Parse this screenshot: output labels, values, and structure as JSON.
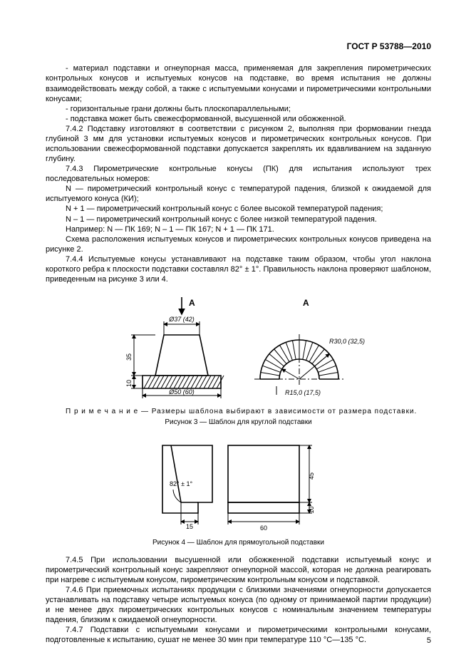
{
  "header": "ГОСТ Р 53788—2010",
  "paragraphs": {
    "p1": "-  материал подставки и огнеупорная масса, применяемая для закрепления пирометрических контрольных конусов и испытуемых конусов на подставке, во время испытания не должны взаимодействовать между собой, а также с испытуемыми конусами и пирометрическими контрольными конусами;",
    "p2": "-  горизонтальные грани должны быть плоскопараллельными;",
    "p3": "-  подставка может быть свежесформованной, высушенной или обожженной.",
    "p4": "7.4.2   Подставку изготовляют в соответствии с рисунком 2, выполняя при формовании гнезда глубиной 3 мм для установки испытуемых конусов и пирометрических контрольных конусов. При использовании свежесформованной подставки допускается закреплять их вдавливанием на заданную глубину.",
    "p5": "7.4.3   Пирометрические контрольные конусы (ПК) для испытания используют трех последовательных номеров:",
    "p6": "N — пирометрический контрольный конус с температурой падения, близкой к ожидаемой для испытуемого конуса (КИ);",
    "p7": "N + 1 — пирометрический контрольный конус с более высокой температурой падения;",
    "p8": "N – 1 — пирометрический контрольный конус с более низкой температурой падения.",
    "p9": "Например: N — ПК 169; N – 1 — ПК 167; N + 1 — ПК 171.",
    "p10": "Схема расположения испытуемых конусов и пирометрических контрольных конусов приведена на рисунке 2.",
    "p11": "7.4.4   Испытуемые конусы устанавливают на подставке таким образом, чтобы угол наклона короткого ребра к плоскости подставки составлял 82° ± 1°. Правильность наклона проверяют шаблоном, приведенным на рисунке 3 или 4.",
    "p12": "7.4.5   При использовании высушенной или обожженной подставки испытуемый конус и пирометрический контрольный конус закрепляют огнеупорной массой, которая не должна реагировать при нагреве с испытуемым конусом, пирометрическим контрольным конусом и подставкой.",
    "p13": "7.4.6   При приемочных испытаниях продукции с близкими значениями огнеупорности допускается устанавливать на подставку четыре испытуемых конуса (по одному от принимаемой партии продукции) и не менее двух пирометрических контрольных конусов с номинальным значением температуры падения, близким к ожидаемой огнеупорности.",
    "p14": "7.4.7   Подставки с испытуемыми конусами и пирометрическими контрольными конусами, подготовленные к испытанию, сушат не менее 30 мин при температуре 110 °C—135 °C."
  },
  "note_text": "П р и м е ч а н и е — Размеры шаблона выбирают в зависимости от размера подставки.",
  "caption3": "Рисунок 3 — Шаблон для круглой подставки",
  "caption4": "Рисунок 4 — Шаблон для прямоугольной подставки",
  "page_number": "5",
  "fig3": {
    "letter_A": "A",
    "d37": "Ø37 (42)",
    "d50": "Ø50 (60)",
    "h35": "35",
    "h10": "10",
    "r30": "R30,0 (32,5)",
    "r15": "R15,0 (17,5)",
    "stroke": "#000000",
    "thin": 1.0,
    "thick": 1.6,
    "hatch": 1.0
  },
  "fig4": {
    "angle": "82° ± 1°",
    "w15": "15",
    "w60": "60",
    "h45": "45",
    "h10": "10",
    "stroke": "#000000",
    "thin": 1.0,
    "thick": 1.6
  }
}
